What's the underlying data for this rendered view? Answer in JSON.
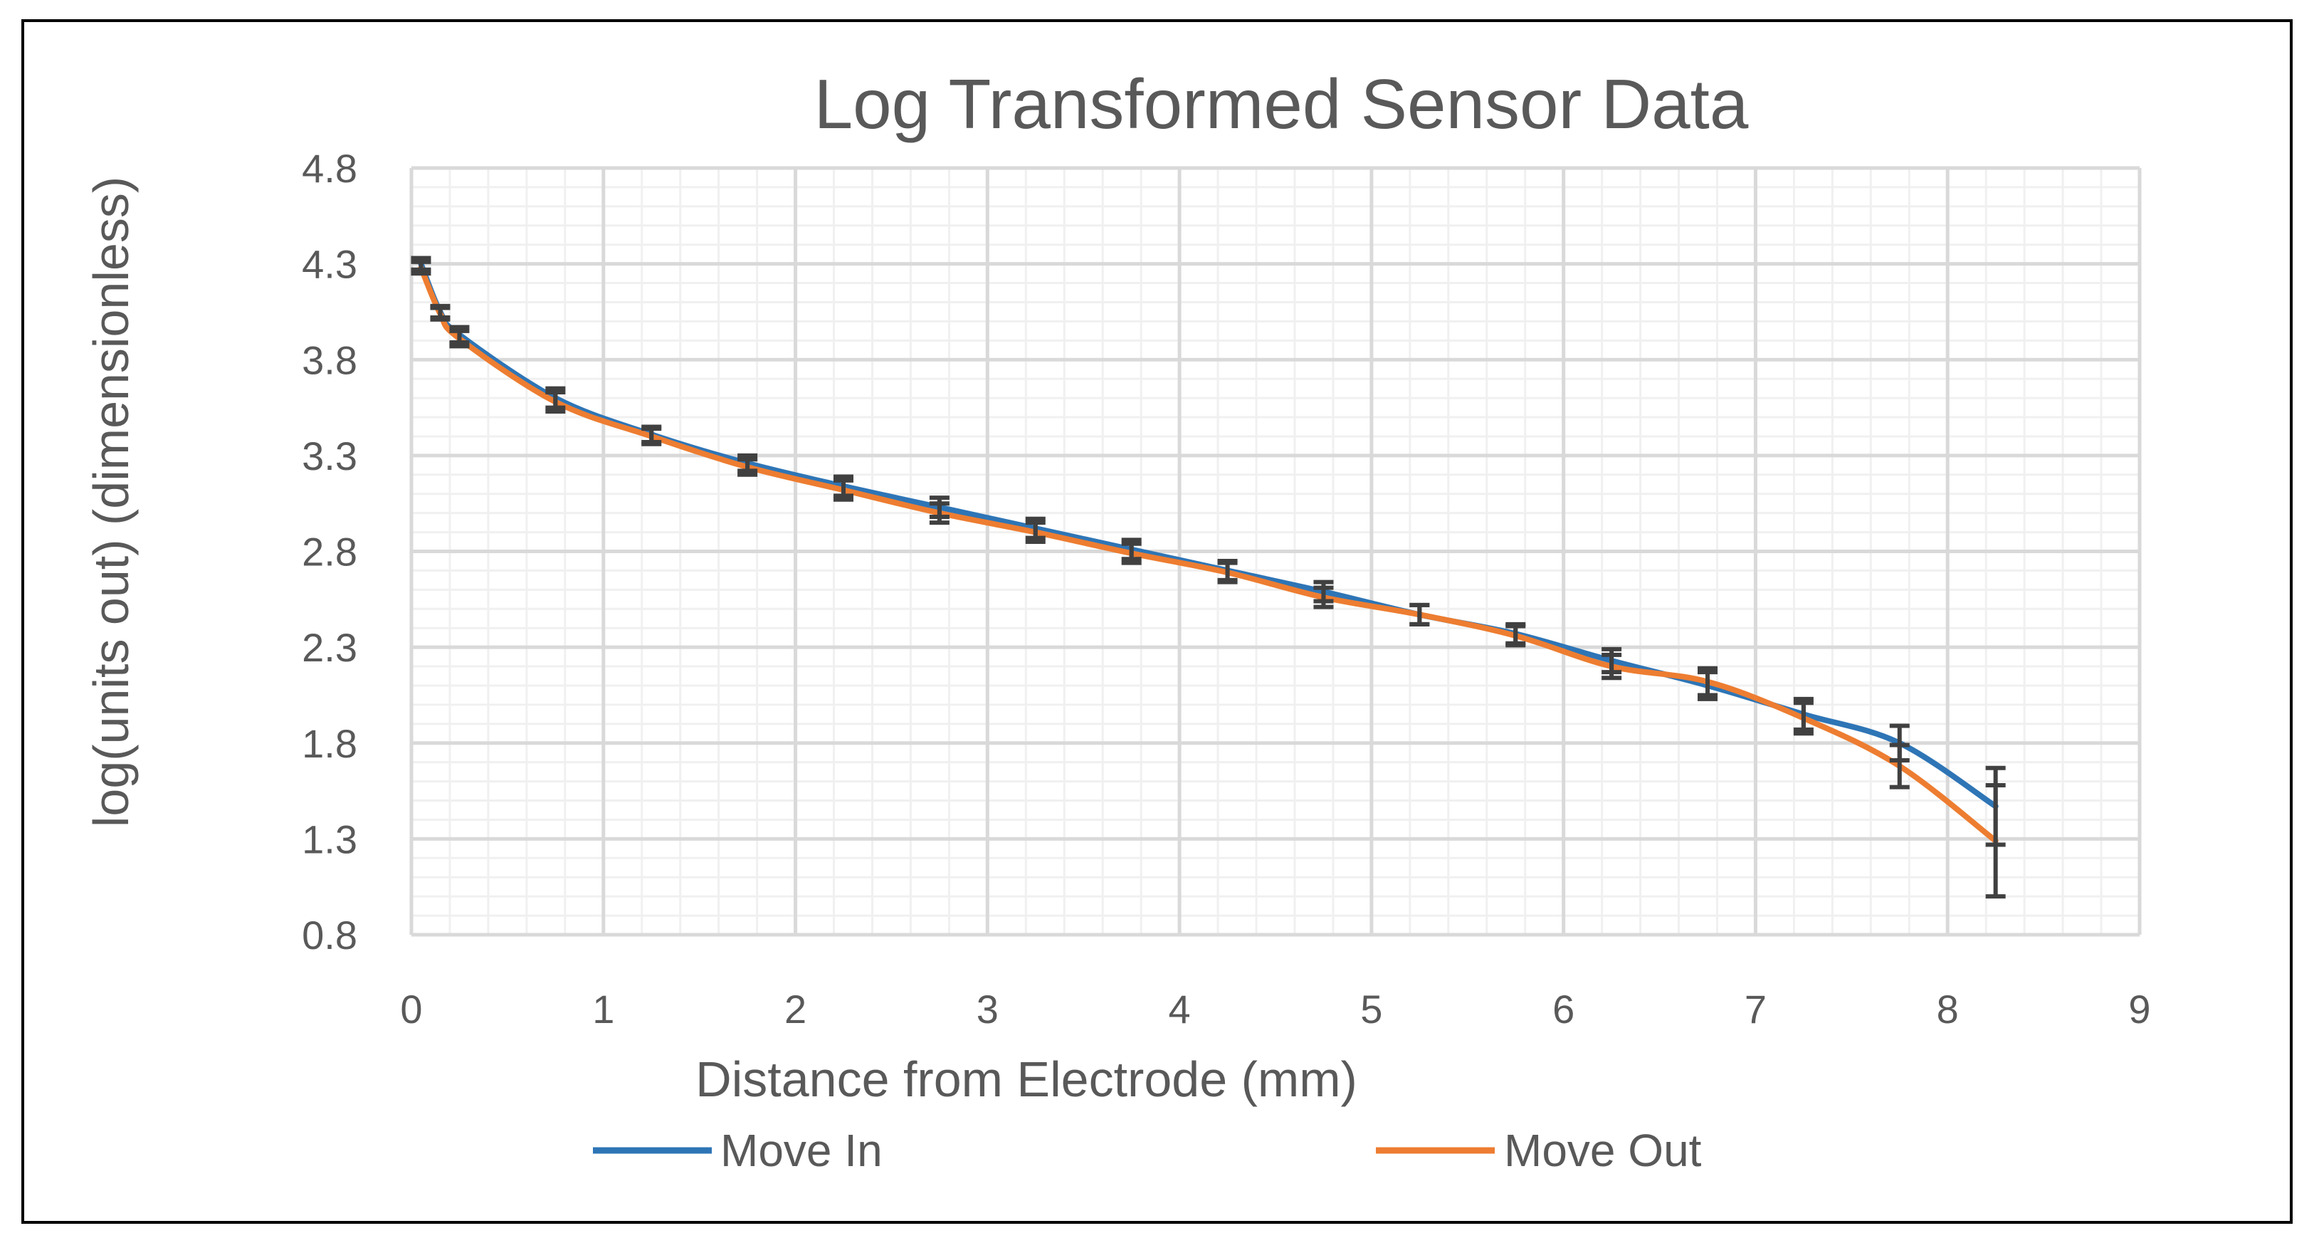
{
  "chart_data": {
    "type": "line",
    "title": "Log Transformed Sensor Data",
    "xlabel": "Distance from Electrode (mm)",
    "ylabel": "log(units out) (dimensionless)",
    "xlim": [
      0,
      9
    ],
    "ylim": [
      0.8,
      4.8
    ],
    "xticks": [
      0,
      1,
      2,
      3,
      4,
      5,
      6,
      7,
      8,
      9
    ],
    "yticks": [
      0.8,
      1.3,
      1.8,
      2.3,
      2.8,
      3.3,
      3.8,
      4.3,
      4.8
    ],
    "ytick_labels": [
      "0.8",
      "1.3",
      "1.8",
      "2.3",
      "2.8",
      "3.3",
      "3.8",
      "4.3",
      "4.8"
    ],
    "grid": true,
    "legend_position": "bottom",
    "x": [
      0.05,
      0.15,
      0.25,
      0.75,
      1.25,
      1.75,
      2.25,
      2.75,
      3.25,
      3.75,
      4.25,
      4.75,
      5.25,
      5.75,
      6.25,
      6.75,
      7.25,
      7.75,
      8.25
    ],
    "series": [
      {
        "name": "Move In",
        "color": "#2e75b6",
        "values": [
          4.3,
          4.05,
          3.93,
          3.6,
          3.41,
          3.26,
          3.14,
          3.03,
          2.92,
          2.81,
          2.7,
          2.59,
          2.47,
          2.37,
          2.23,
          2.1,
          1.95,
          1.8,
          1.47
        ],
        "error": [
          0.03,
          0.03,
          0.04,
          0.05,
          0.04,
          0.04,
          0.05,
          0.05,
          0.05,
          0.05,
          0.05,
          0.05,
          0.05,
          0.05,
          0.06,
          0.07,
          0.08,
          0.09,
          0.2
        ]
      },
      {
        "name": "Move Out",
        "color": "#ed7d31",
        "values": [
          4.28,
          4.04,
          3.91,
          3.58,
          3.4,
          3.24,
          3.12,
          3.0,
          2.9,
          2.79,
          2.69,
          2.56,
          2.47,
          2.36,
          2.2,
          2.12,
          1.93,
          1.68,
          1.29
        ],
        "error": [
          0.03,
          0.03,
          0.04,
          0.05,
          0.04,
          0.04,
          0.05,
          0.05,
          0.05,
          0.05,
          0.05,
          0.05,
          0.05,
          0.05,
          0.06,
          0.07,
          0.08,
          0.11,
          0.29
        ]
      }
    ]
  }
}
